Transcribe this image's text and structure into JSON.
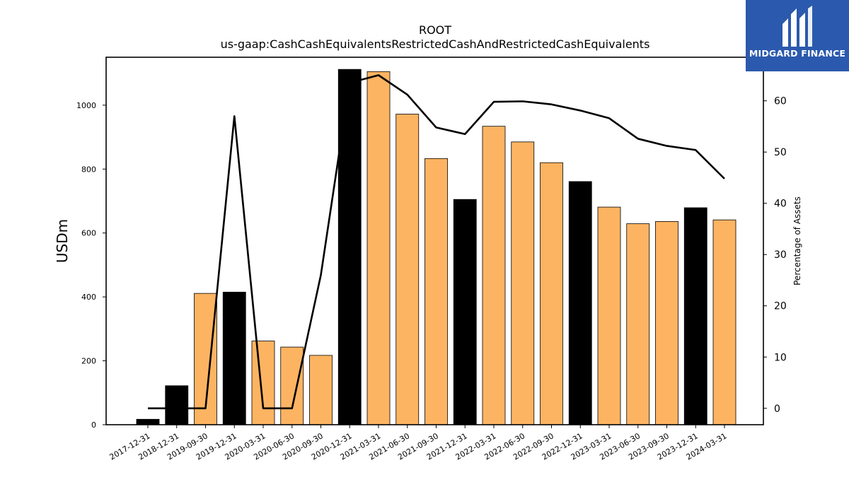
{
  "brand": {
    "name": "MIDGARD FINANCE",
    "icon": "midgard-logo-icon",
    "color": "#2b59ad"
  },
  "chart_data": {
    "type": "bar",
    "title": "ROOT",
    "subtitle": "us-gaap:CashCashEquivalentsRestrictedCashAndRestrictedCashEquivalents",
    "ylabel": "USDm",
    "y2label": "Percentage of Assets",
    "ylim": [
      0,
      1150
    ],
    "y2lim": [
      -3.2,
      68.5
    ],
    "yticks": [
      0,
      200,
      400,
      600,
      800,
      1000
    ],
    "y2ticks": [
      0,
      10,
      20,
      30,
      40,
      50,
      60
    ],
    "categories": [
      "2017-12-31",
      "2018-12-31",
      "2019-09-30",
      "2019-12-31",
      "2020-03-31",
      "2020-06-30",
      "2020-09-30",
      "2020-12-31",
      "2021-03-31",
      "2021-06-30",
      "2021-09-30",
      "2021-12-31",
      "2022-03-31",
      "2022-06-30",
      "2022-09-30",
      "2022-12-31",
      "2023-03-31",
      "2023-06-30",
      "2023-09-30",
      "2023-12-31",
      "2024-03-31"
    ],
    "series": [
      {
        "type": "bar",
        "values": [
          17,
          122,
          411,
          415,
          262,
          243,
          217,
          1112,
          1105,
          972,
          833,
          705,
          934,
          885,
          820,
          761,
          681,
          629,
          636,
          679,
          641
        ],
        "colors": [
          "#000000",
          "#000000",
          "#fdb462",
          "#000000",
          "#fdb462",
          "#fdb462",
          "#fdb462",
          "#000000",
          "#fdb462",
          "#fdb462",
          "#fdb462",
          "#000000",
          "#fdb462",
          "#fdb462",
          "#fdb462",
          "#000000",
          "#fdb462",
          "#fdb462",
          "#fdb462",
          "#000000",
          "#fdb462"
        ]
      },
      {
        "type": "line",
        "axis": "right",
        "color": "#000000",
        "values": [
          0,
          0,
          0,
          57.0,
          0,
          0,
          26.0,
          63.5,
          65.0,
          61.2,
          54.8,
          53.5,
          59.8,
          59.9,
          59.3,
          58.1,
          56.6,
          52.6,
          51.2,
          50.4,
          44.8
        ]
      }
    ],
    "grid": false,
    "legend": "none"
  }
}
